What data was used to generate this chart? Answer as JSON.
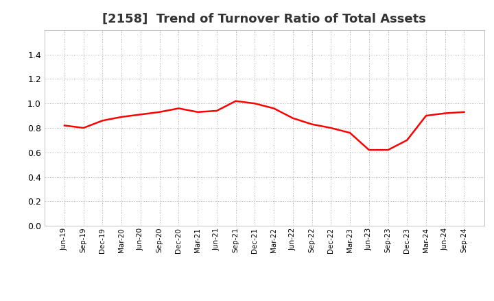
{
  "title": "[2158]  Trend of Turnover Ratio of Total Assets",
  "title_fontsize": 13,
  "title_fontweight": "bold",
  "line_color": "#FF0000",
  "line_width": 1.8,
  "background_color": "#FFFFFF",
  "grid_color": "#999999",
  "ylim": [
    0.0,
    1.6
  ],
  "yticks": [
    0.0,
    0.2,
    0.4,
    0.6,
    0.8,
    1.0,
    1.2,
    1.4
  ],
  "x_labels": [
    "Jun-19",
    "Sep-19",
    "Dec-19",
    "Mar-20",
    "Jun-20",
    "Sep-20",
    "Dec-20",
    "Mar-21",
    "Jun-21",
    "Sep-21",
    "Dec-21",
    "Mar-22",
    "Jun-22",
    "Sep-22",
    "Dec-22",
    "Mar-23",
    "Jun-23",
    "Sep-23",
    "Dec-23",
    "Mar-24",
    "Jun-24",
    "Sep-24"
  ],
  "y_values": [
    0.82,
    0.8,
    0.86,
    0.89,
    0.91,
    0.93,
    0.96,
    0.93,
    0.94,
    1.02,
    1.0,
    0.96,
    0.88,
    0.83,
    0.8,
    0.76,
    0.62,
    0.62,
    0.7,
    0.9,
    0.92,
    0.93
  ]
}
